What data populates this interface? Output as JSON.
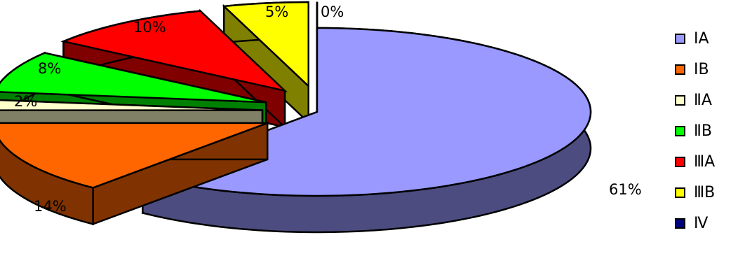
{
  "chart_data": {
    "type": "pie",
    "style": "3d-exploded",
    "categories": [
      "ⅠA",
      "ⅠB",
      "ⅡA",
      "ⅡB",
      "ⅢA",
      "ⅢB",
      "Ⅳ"
    ],
    "values": [
      61,
      14,
      2,
      8,
      10,
      5,
      0
    ],
    "labels": [
      "61%",
      "14%",
      "2%",
      "8%",
      "10%",
      "5%",
      "0%"
    ],
    "colors": [
      "#9999FF",
      "#FF6600",
      "#FFFFCC",
      "#00FF00",
      "#FF0000",
      "#FFFF00",
      "#000080"
    ],
    "side_colors": [
      "#4C4C80",
      "#803300",
      "#808066",
      "#008000",
      "#800000",
      "#808000",
      "#000040"
    ],
    "legend_position": "right",
    "title": ""
  }
}
